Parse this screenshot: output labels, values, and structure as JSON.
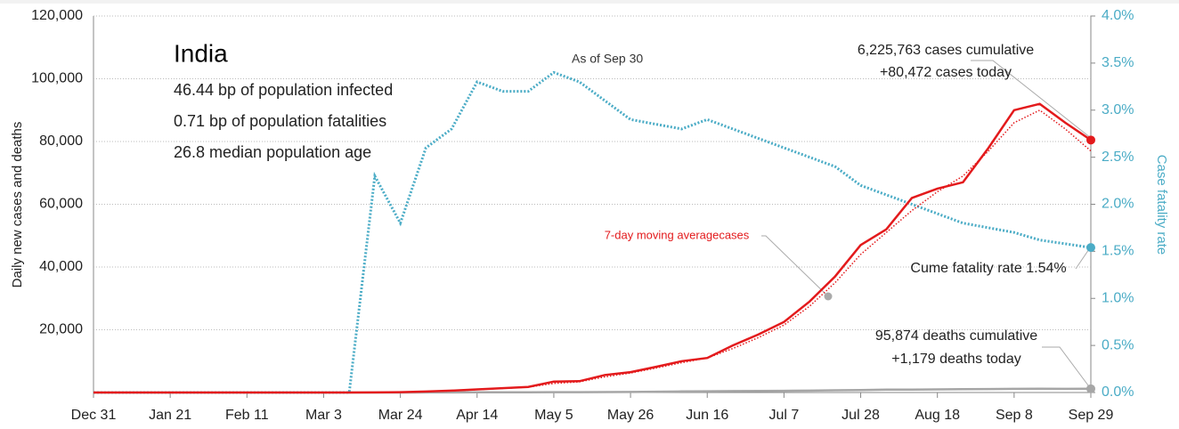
{
  "chart_data": {
    "type": "line",
    "y_label": "Daily new cases and deaths",
    "y2_label": "Case fatality rate",
    "categories": [
      "Dec 31",
      null,
      null,
      "Jan 21",
      null,
      null,
      "Feb 11",
      null,
      null,
      "Mar 3",
      null,
      null,
      "Mar 24",
      null,
      null,
      "Apr 14",
      null,
      null,
      "May 5",
      null,
      null,
      "May 26",
      null,
      null,
      "Jun 16",
      null,
      null,
      "Jul 7",
      null,
      null,
      "Jul 28",
      null,
      null,
      "Aug 18",
      null,
      null,
      "Sep 8",
      null,
      null,
      "Sep 29"
    ],
    "series": [
      {
        "name": "Daily new cases",
        "color": "#e31a1c",
        "style": "solid",
        "values": [
          0,
          0,
          0,
          0,
          0,
          0,
          0,
          0,
          0,
          0,
          10,
          20,
          100,
          300,
          600,
          1000,
          1400,
          1800,
          3500,
          3600,
          5600,
          6500,
          8200,
          10000,
          11000,
          15000,
          18500,
          22500,
          29000,
          37000,
          47000,
          52000,
          62000,
          65000,
          67000,
          78000,
          90000,
          92000,
          86000,
          80472
        ]
      },
      {
        "name": "7-day moving averagecases",
        "color": "#e31a1c",
        "style": "dotted",
        "values": [
          0,
          0,
          0,
          0,
          0,
          0,
          0,
          0,
          0,
          0,
          5,
          15,
          80,
          250,
          500,
          900,
          1300,
          1700,
          2900,
          3400,
          5000,
          6200,
          7800,
          9500,
          11000,
          14000,
          17500,
          21500,
          27500,
          35000,
          44000,
          51000,
          58000,
          64000,
          69000,
          77000,
          86000,
          90000,
          84000,
          77000
        ]
      },
      {
        "name": "Daily new deaths",
        "color": "#a6a6a6",
        "style": "solid",
        "values": [
          0,
          0,
          0,
          0,
          0,
          0,
          0,
          0,
          0,
          0,
          0,
          0,
          5,
          20,
          40,
          60,
          70,
          90,
          110,
          120,
          140,
          160,
          250,
          350,
          400,
          450,
          500,
          550,
          600,
          700,
          800,
          900,
          950,
          1000,
          1050,
          1100,
          1150,
          1200,
          1150,
          1179
        ]
      },
      {
        "name": "Case fatality rate",
        "color": "#4bacc6",
        "style": "dotted",
        "axis": "y2",
        "values": [
          0,
          0,
          0,
          0,
          0,
          0,
          0,
          0,
          0,
          0,
          0,
          2.3,
          1.8,
          2.6,
          2.8,
          3.3,
          3.2,
          3.2,
          3.4,
          3.3,
          3.1,
          2.9,
          2.85,
          2.8,
          2.9,
          2.8,
          2.7,
          2.6,
          2.5,
          2.4,
          2.2,
          2.1,
          2.0,
          1.9,
          1.8,
          1.75,
          1.7,
          1.62,
          1.58,
          1.54
        ]
      }
    ],
    "ylim": [
      0,
      120000
    ],
    "yticks": [
      {
        "value": 20000,
        "label": "20,000"
      },
      {
        "value": 40000,
        "label": "40,000"
      },
      {
        "value": 60000,
        "label": "60,000"
      },
      {
        "value": 80000,
        "label": "80,000"
      },
      {
        "value": 100000,
        "label": "100,000"
      },
      {
        "value": 120000,
        "label": "120,000"
      }
    ],
    "y2lim": [
      0,
      4
    ],
    "y2ticks": [
      {
        "value": 0,
        "label": "0.0%"
      },
      {
        "value": 0.5,
        "label": "0.5%"
      },
      {
        "value": 1,
        "label": "1.0%"
      },
      {
        "value": 1.5,
        "label": "1.5%"
      },
      {
        "value": 2,
        "label": "2.0%"
      },
      {
        "value": 2.5,
        "label": "2.5%"
      },
      {
        "value": 3,
        "label": "3.0%"
      },
      {
        "value": 3.5,
        "label": "3.5%"
      },
      {
        "value": 4,
        "label": "4.0%"
      }
    ],
    "grid": true,
    "annotations": [
      "India",
      "46.44 bp of population infected",
      "0.71 bp of population fatalities",
      "26.8 median population age",
      "As of Sep 30",
      "6,225,763 cases cumulative",
      "+80,472 cases today",
      "7-day moving averagecases",
      "Cume fatality rate 1.54%",
      "95,874 deaths cumulative",
      "+1,179 deaths today"
    ]
  }
}
